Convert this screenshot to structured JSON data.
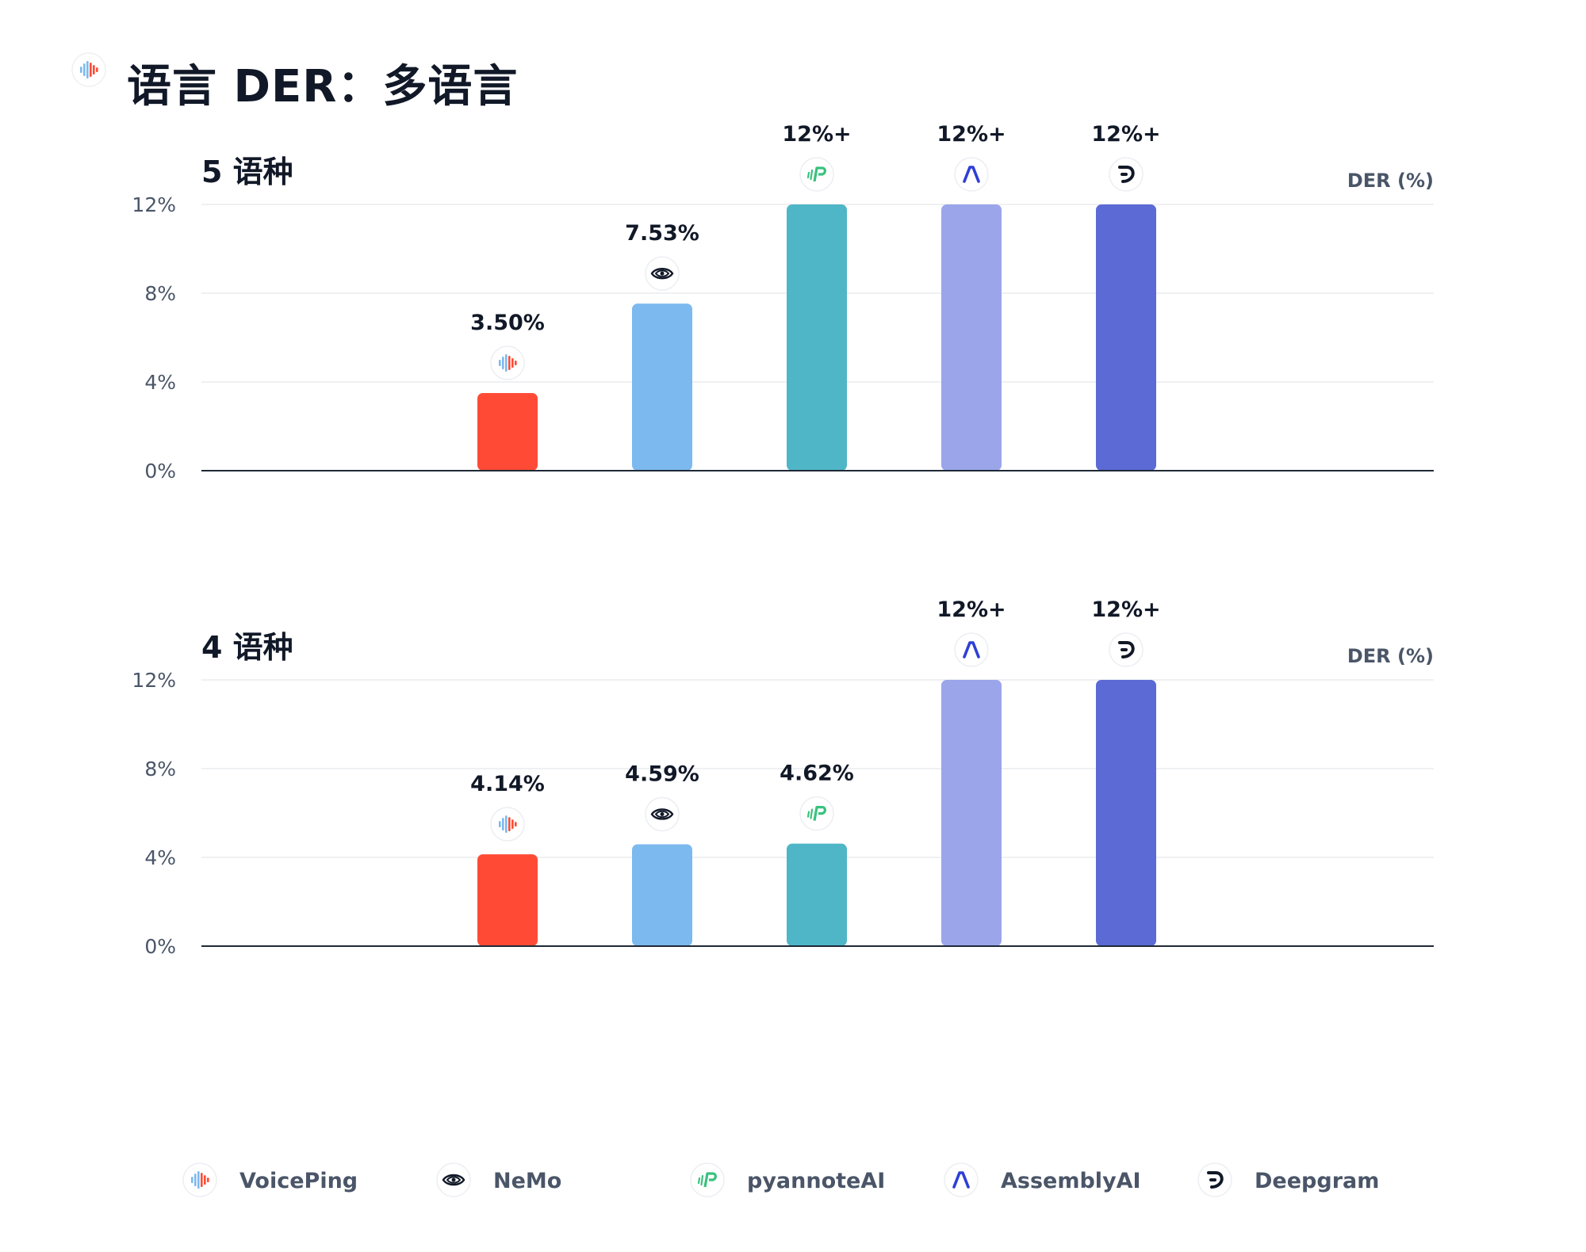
{
  "title": "语言 DER：多语言",
  "header_icon": "voiceping-logo-icon",
  "colors": {
    "VoicePing": "#ff4b36",
    "NeMo": "#7cb9ee",
    "pyannoteAI": "#4fb6c7",
    "AssemblyAI": "#9aa5ea",
    "Deepgram": "#5b6ad5",
    "axis": "#1f2937",
    "grid": "#e5e7eb",
    "tick": "#4a5568"
  },
  "legend": [
    {
      "name": "VoicePing",
      "icon": "voiceping-logo-icon"
    },
    {
      "name": "NeMo",
      "icon": "nvidia-eye-icon"
    },
    {
      "name": "pyannoteAI",
      "icon": "pyannote-logo-icon"
    },
    {
      "name": "AssemblyAI",
      "icon": "assemblyai-logo-icon"
    },
    {
      "name": "Deepgram",
      "icon": "deepgram-logo-icon"
    }
  ],
  "chart_data": [
    {
      "type": "bar",
      "title": "5 语种",
      "ylabel": "DER (%)",
      "ylim": [
        0,
        12
      ],
      "yticks": [
        "0%",
        "4%",
        "8%",
        "12%"
      ],
      "grid": true,
      "categories": [
        "VoicePing",
        "NeMo",
        "pyannoteAI",
        "AssemblyAI",
        "Deepgram"
      ],
      "values": [
        3.5,
        7.53,
        12,
        12,
        12
      ],
      "labels": [
        "3.50%",
        "7.53%",
        "12%+",
        "12%+",
        "12%+"
      ]
    },
    {
      "type": "bar",
      "title": "4 语种",
      "ylabel": "DER (%)",
      "ylim": [
        0,
        12
      ],
      "yticks": [
        "0%",
        "4%",
        "8%",
        "12%"
      ],
      "grid": true,
      "categories": [
        "VoicePing",
        "NeMo",
        "pyannoteAI",
        "AssemblyAI",
        "Deepgram"
      ],
      "values": [
        4.14,
        4.59,
        4.62,
        12,
        12
      ],
      "labels": [
        "4.14%",
        "4.59%",
        "4.62%",
        "12%+",
        "12%+"
      ]
    }
  ]
}
